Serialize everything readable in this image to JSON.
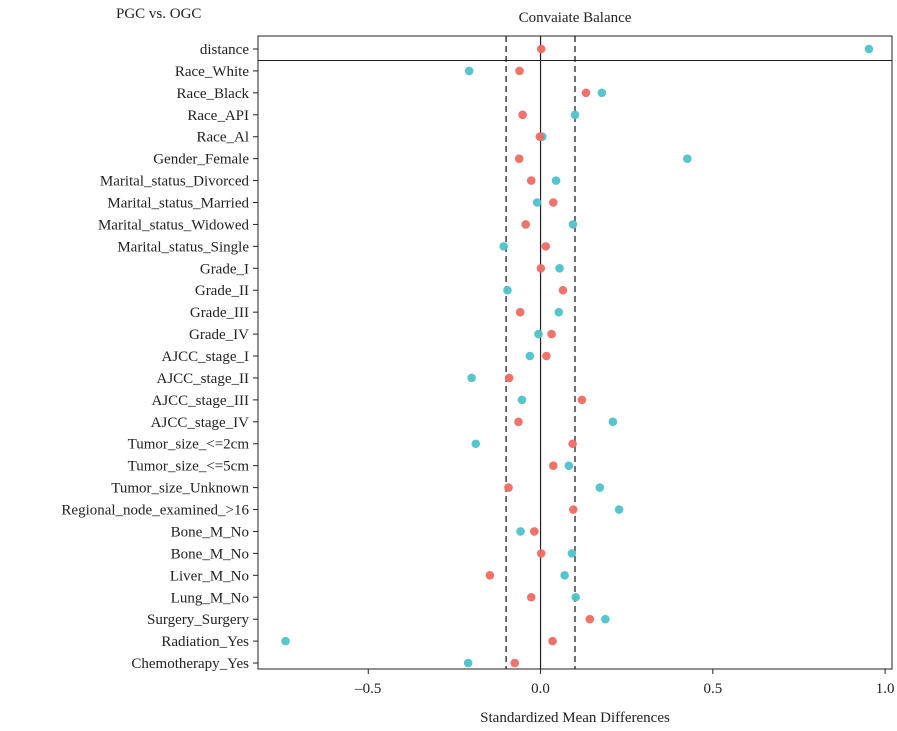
{
  "corner_label": "PGC vs. OGC",
  "chart_data": {
    "type": "scatter",
    "title": "Convaiate Balance",
    "xlabel": "Standardized Mean Differences",
    "ylabel": "",
    "xlim": [
      -0.82,
      1.02
    ],
    "xticks": [
      -0.5,
      0.0,
      0.5,
      1.0
    ],
    "xtick_labels": [
      "–0.5",
      "0.0",
      "0.5",
      "1.0"
    ],
    "threshold_lines": [
      -0.1,
      0.1
    ],
    "zero_line": 0.0,
    "grid": false,
    "legend": "none",
    "categories": [
      "distance",
      "Race_White",
      "Race_Black",
      "Race_API",
      "Race_Al",
      "Gender_Female",
      "Marital_status_Divorced",
      "Marital_status_Married",
      "Marital_status_Widowed",
      "Marital_status_Single",
      "Grade_I",
      "Grade_II",
      "Grade_III",
      "Grade_IV",
      "AJCC_stage_I",
      "AJCC_stage_II",
      "AJCC_stage_III",
      "AJCC_stage_IV",
      "Tumor_size_<=2cm",
      "Tumor_size_<=5cm",
      "Tumor_size_Unknown",
      "Regional_node_examined_>16",
      "Bone_M_No",
      "Bone_M_No",
      "Liver_M_No",
      "Lung_M_No",
      "Surgery_Surgery",
      "Radiation_Yes",
      "Chemotherapy_Yes"
    ],
    "series": [
      {
        "color": "#4ec3c9",
        "values": [
          0.953,
          -0.207,
          0.178,
          0.1,
          0.005,
          0.426,
          0.045,
          -0.01,
          0.094,
          -0.107,
          0.055,
          -0.096,
          0.053,
          -0.006,
          -0.031,
          -0.2,
          -0.054,
          0.21,
          -0.188,
          0.082,
          0.172,
          0.228,
          -0.058,
          0.091,
          0.07,
          0.102,
          0.188,
          -0.74,
          -0.21
        ]
      },
      {
        "color": "#ef6b63",
        "values": [
          0.002,
          -0.061,
          0.132,
          -0.052,
          -0.002,
          -0.062,
          -0.027,
          0.037,
          -0.043,
          0.015,
          0.001,
          0.065,
          -0.059,
          0.032,
          0.017,
          -0.091,
          0.12,
          -0.064,
          0.093,
          0.037,
          -0.093,
          0.095,
          -0.018,
          0.002,
          -0.147,
          -0.027,
          0.143,
          0.035,
          -0.075
        ]
      }
    ]
  }
}
